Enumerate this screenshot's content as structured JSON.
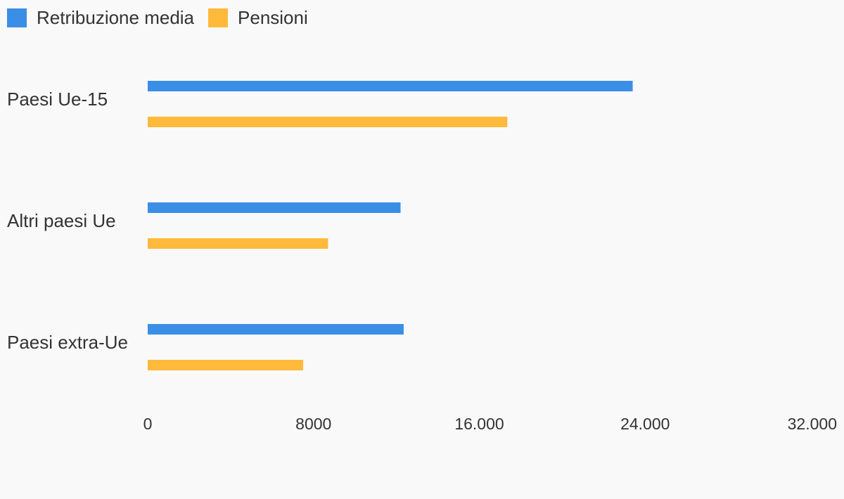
{
  "chart_data": {
    "type": "bar",
    "orientation": "horizontal",
    "title": "",
    "xlabel": "",
    "ylabel": "",
    "categories": [
      "Paesi Ue-15",
      "Altri paesi Ue",
      "Paesi extra-Ue"
    ],
    "series": [
      {
        "name": "Retribuzione media",
        "color": "#3a8ee6",
        "values": [
          23400,
          12200,
          12350
        ]
      },
      {
        "name": "Pensioni",
        "color": "#ffb93b",
        "values": [
          17350,
          8700,
          7500
        ]
      }
    ],
    "xlim": [
      0,
      32000
    ],
    "x_ticks": [
      {
        "value": 0,
        "label": "0"
      },
      {
        "value": 8000,
        "label": "8000"
      },
      {
        "value": 16000,
        "label": "16.000"
      },
      {
        "value": 24000,
        "label": "24.000"
      },
      {
        "value": 32000,
        "label": "32.000"
      }
    ],
    "grid": false,
    "legend_position": "top-left"
  }
}
